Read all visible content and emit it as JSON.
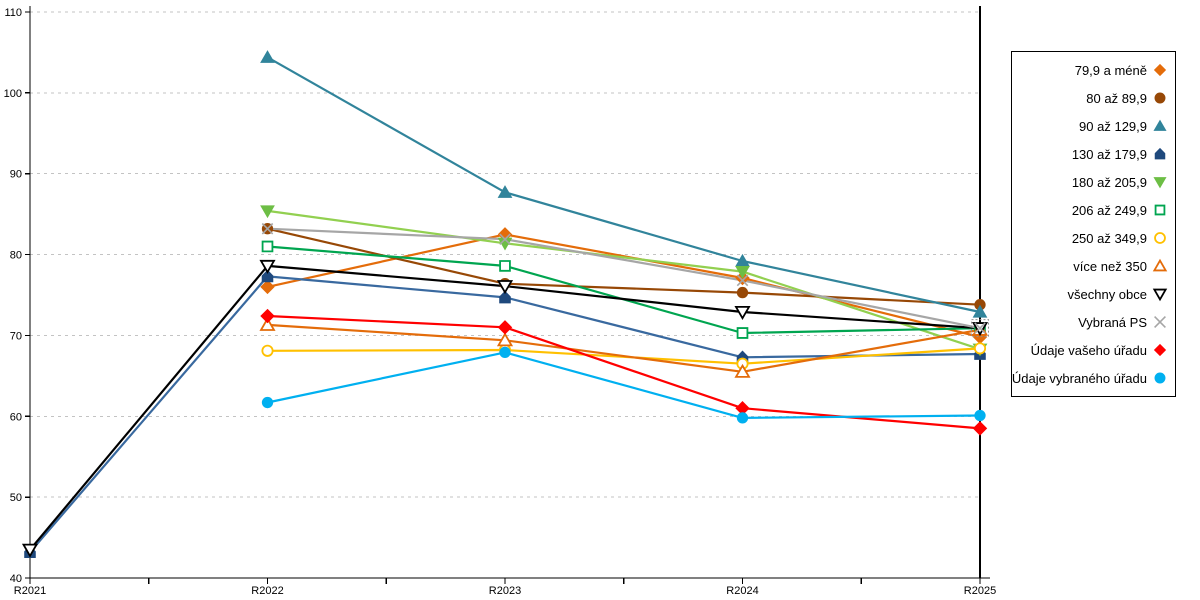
{
  "page": {
    "background": "#ffffff"
  },
  "axes": {
    "y_ticks": [
      40,
      50,
      60,
      70,
      80,
      90,
      100,
      110
    ],
    "axis_color": "#000000",
    "gridline_color": "#c3c3c3",
    "tick_label_color": "#000000"
  },
  "legend": {
    "border_color": "#000000",
    "background": "#ffffff"
  },
  "chart_data": {
    "type": "line",
    "title": "",
    "xlabel": "",
    "ylabel": "",
    "x": [
      "R2021",
      "R2022",
      "R2023",
      "R2024",
      "R2025"
    ],
    "ylim": [
      40,
      110
    ],
    "y_tick_step": 10,
    "grid": "horizontal-dashed",
    "legend_position": "right-outside",
    "series": [
      {
        "name": "79,9 a méně",
        "marker": "diamond",
        "style": "filled",
        "color": "#E46C0A",
        "values": [
          null,
          76.0,
          82.5,
          77.1,
          69.8
        ]
      },
      {
        "name": "80 až 89,9",
        "marker": "circle",
        "style": "filled",
        "color": "#974806",
        "values": [
          null,
          83.2,
          76.4,
          75.3,
          73.8
        ]
      },
      {
        "name": "90 až 129,9",
        "marker": "triangle-up",
        "style": "filled",
        "color": "#31849B",
        "values": [
          null,
          104.4,
          87.7,
          79.2,
          72.9
        ]
      },
      {
        "name": "130 až 179,9",
        "marker": "pentagon",
        "style": "filled",
        "color": "#1F497D",
        "line_color": "#39699F",
        "values": [
          43.2,
          77.3,
          74.7,
          67.3,
          67.7
        ]
      },
      {
        "name": "180 až 205,9",
        "marker": "triangle-down",
        "style": "filled",
        "color": "#6DBE45",
        "line_color": "#92D050",
        "values": [
          null,
          85.4,
          81.4,
          77.9,
          68.3
        ]
      },
      {
        "name": "206 až 249,9",
        "marker": "square",
        "style": "outline",
        "color": "#00A550",
        "values": [
          null,
          81.0,
          78.6,
          70.3,
          70.9
        ]
      },
      {
        "name": "250 až 349,9",
        "marker": "circle",
        "style": "outline",
        "color": "#FFC000",
        "values": [
          null,
          68.1,
          68.2,
          66.5,
          68.4
        ]
      },
      {
        "name": "více než 350",
        "marker": "triangle-up",
        "style": "outline",
        "color": "#E46C0A",
        "values": [
          null,
          71.3,
          69.4,
          65.5,
          70.7
        ]
      },
      {
        "name": "všechny obce",
        "marker": "triangle-down",
        "style": "outline",
        "color": "#000000",
        "values": [
          43.5,
          78.6,
          76.1,
          72.9,
          70.9
        ]
      },
      {
        "name": "Vybraná PS",
        "marker": "x",
        "style": "line",
        "color": "#A6A6A6",
        "values": [
          null,
          83.2,
          81.9,
          76.8,
          70.9
        ]
      },
      {
        "name": "Údaje vašeho úřadu",
        "marker": "diamond",
        "style": "filled",
        "color": "#FF0000",
        "values": [
          null,
          72.4,
          71.0,
          61.0,
          58.5
        ]
      },
      {
        "name": "Údaje vybraného úřadu",
        "marker": "circle",
        "style": "filled",
        "color": "#00B0F0",
        "values": [
          null,
          61.7,
          67.9,
          59.8,
          60.1
        ]
      }
    ],
    "annotations": [
      {
        "type": "selection-box",
        "x_label": "R2025",
        "value": 70.9
      }
    ]
  }
}
